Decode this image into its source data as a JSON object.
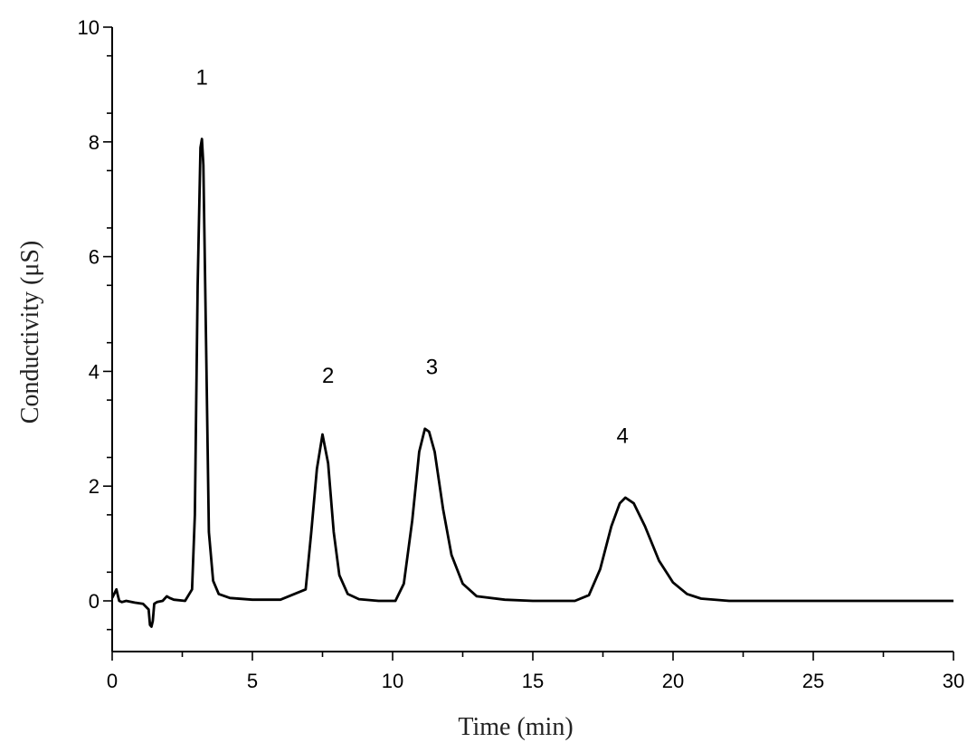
{
  "chart_data": {
    "type": "line",
    "title": "",
    "xlabel": "Time (min)",
    "ylabel": "Conductivity (μS)",
    "xlim": [
      0,
      30
    ],
    "ylim": [
      -0.9,
      10
    ],
    "xticks": [
      0,
      5,
      10,
      15,
      20,
      25,
      30
    ],
    "yticks": [
      0,
      2,
      4,
      6,
      8,
      10
    ],
    "grid": false,
    "series": [
      {
        "color": "#000000",
        "x": [
          0,
          0.1,
          0.15,
          0.2,
          0.25,
          0.35,
          0.5,
          0.8,
          1.1,
          1.3,
          1.35,
          1.4,
          1.45,
          1.5,
          1.6,
          1.8,
          1.95,
          2.05,
          2.2,
          2.6,
          2.85,
          2.95,
          3.05,
          3.15,
          3.2,
          3.25,
          3.35,
          3.45,
          3.6,
          3.8,
          4.2,
          5.0,
          6.0,
          6.9,
          7.1,
          7.3,
          7.5,
          7.7,
          7.9,
          8.1,
          8.4,
          8.8,
          9.5,
          10.1,
          10.4,
          10.7,
          10.95,
          11.15,
          11.3,
          11.5,
          11.8,
          12.1,
          12.5,
          13.0,
          14.0,
          15.0,
          16.5,
          17.0,
          17.4,
          17.8,
          18.1,
          18.3,
          18.6,
          19.0,
          19.5,
          20.0,
          20.5,
          21.0,
          22.0,
          25.0,
          30.0
        ],
        "y": [
          0.05,
          0.15,
          0.2,
          0.1,
          0.0,
          -0.02,
          0.0,
          -0.03,
          -0.05,
          -0.15,
          -0.42,
          -0.45,
          -0.35,
          -0.05,
          -0.02,
          0.0,
          0.08,
          0.05,
          0.02,
          0.0,
          0.2,
          1.5,
          5.5,
          7.9,
          8.05,
          7.6,
          4.5,
          1.2,
          0.35,
          0.12,
          0.05,
          0.02,
          0.02,
          0.2,
          1.2,
          2.3,
          2.9,
          2.4,
          1.2,
          0.45,
          0.12,
          0.03,
          0.0,
          0.0,
          0.3,
          1.4,
          2.6,
          3.0,
          2.95,
          2.6,
          1.6,
          0.8,
          0.3,
          0.08,
          0.02,
          0.0,
          0.0,
          0.1,
          0.55,
          1.3,
          1.7,
          1.8,
          1.7,
          1.3,
          0.7,
          0.32,
          0.12,
          0.04,
          0.0,
          0.0,
          0.0
        ]
      }
    ],
    "annotations": [
      {
        "text": "1",
        "x": 3.2,
        "y": 9.0
      },
      {
        "text": "2",
        "x": 7.7,
        "y": 3.8
      },
      {
        "text": "3",
        "x": 11.4,
        "y": 3.95
      },
      {
        "text": "4",
        "x": 18.2,
        "y": 2.75
      }
    ]
  }
}
